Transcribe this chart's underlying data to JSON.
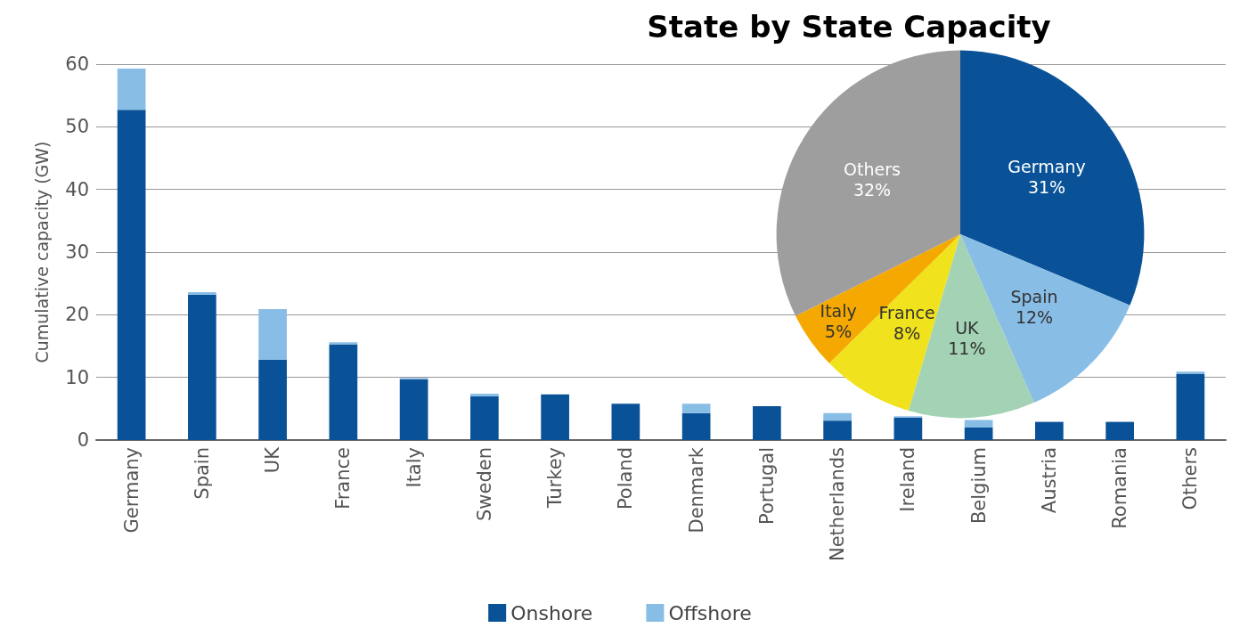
{
  "chart_data": [
    {
      "type": "bar",
      "title": "State by State Capacity",
      "ylabel": "Cumulative capacity (GW)",
      "stacked": true,
      "categories": [
        "Germany",
        "Spain",
        "UK",
        "France",
        "Italy",
        "Sweden",
        "Turkey",
        "Poland",
        "Denmark",
        "Portugal",
        "Netherlands",
        "Ireland",
        "Belgium",
        "Austria",
        "Romania",
        "Others"
      ],
      "series": [
        {
          "name": "Onshore",
          "color": "#0a5298",
          "values": [
            52.7,
            23.2,
            12.8,
            15.3,
            9.7,
            7.0,
            7.3,
            5.8,
            4.3,
            5.4,
            3.1,
            3.6,
            2.0,
            2.9,
            2.9,
            10.6
          ]
        },
        {
          "name": "Offshore",
          "color": "#88bde6",
          "values": [
            6.6,
            0.4,
            8.1,
            0.3,
            0.2,
            0.4,
            0,
            0,
            1.5,
            0,
            1.2,
            0.2,
            1.2,
            0,
            0,
            0.3
          ]
        }
      ],
      "ylim": [
        0,
        60
      ],
      "yticks": [
        0,
        10,
        20,
        30,
        40,
        50,
        60
      ],
      "grid": "y",
      "legend": "bottom"
    },
    {
      "type": "pie",
      "categories": [
        "Germany",
        "Spain",
        "UK",
        "France",
        "Italy",
        "Others"
      ],
      "values": [
        31,
        12,
        11,
        8,
        5,
        32
      ],
      "value_labels": [
        "31%",
        "12%",
        "11%",
        "8%",
        "5%",
        "32%"
      ],
      "colors": [
        "#0a5298",
        "#88bde6",
        "#a3d3b4",
        "#f0e21c",
        "#f5a800",
        "#9e9e9e"
      ]
    }
  ]
}
